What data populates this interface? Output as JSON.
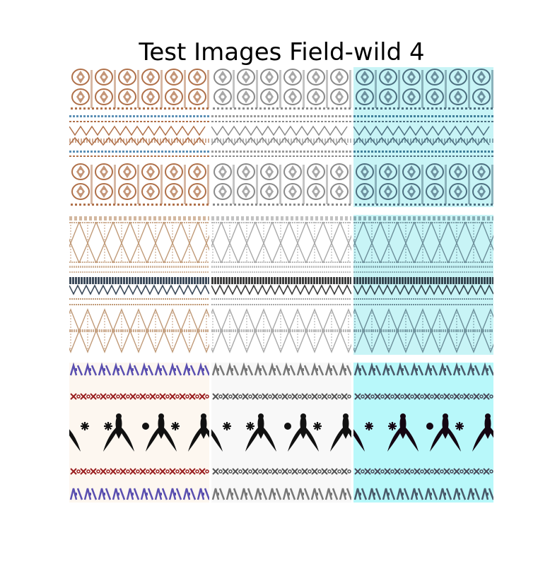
{
  "title": "Test Images Field-wild 4",
  "grid": {
    "rows": [
      {
        "pattern": "ornamental-medallion-band",
        "tiles": [
          {
            "variant": "original",
            "bg": "#ffffff",
            "ink": "#b0714a",
            "accent": "#5b8fb5"
          },
          {
            "variant": "grayscale",
            "bg": "#ffffff",
            "ink": "#8a8a8a",
            "accent": "#9a9a9a"
          },
          {
            "variant": "cyan-tint",
            "bg": "#c8f4f6",
            "ink": "#4d6f80",
            "accent": "#3f7f9a"
          }
        ]
      },
      {
        "pattern": "triangle-zigzag-band",
        "tiles": [
          {
            "variant": "original",
            "bg": "#ffffff",
            "ink": "#c09a78",
            "accent": "#3c4a5a"
          },
          {
            "variant": "grayscale",
            "bg": "#ffffff",
            "ink": "#a8a8a8",
            "accent": "#3c3c3c"
          },
          {
            "variant": "cyan-tint",
            "bg": "#c8f4f6",
            "ink": "#6c8e99",
            "accent": "#34454f"
          }
        ]
      },
      {
        "pattern": "figure-motif-band",
        "tiles": [
          {
            "variant": "original",
            "bg": "#fdf7f0",
            "ink": "#111111",
            "accent": "#9a1f1f",
            "accent2": "#5a4fb0"
          },
          {
            "variant": "grayscale",
            "bg": "#f8f8f8",
            "ink": "#111111",
            "accent": "#555555",
            "accent2": "#777777"
          },
          {
            "variant": "cyan-tint",
            "bg": "#b8f8fa",
            "ink": "#140612",
            "accent": "#4a4a5a",
            "accent2": "#4a5a6a"
          }
        ]
      }
    ]
  }
}
